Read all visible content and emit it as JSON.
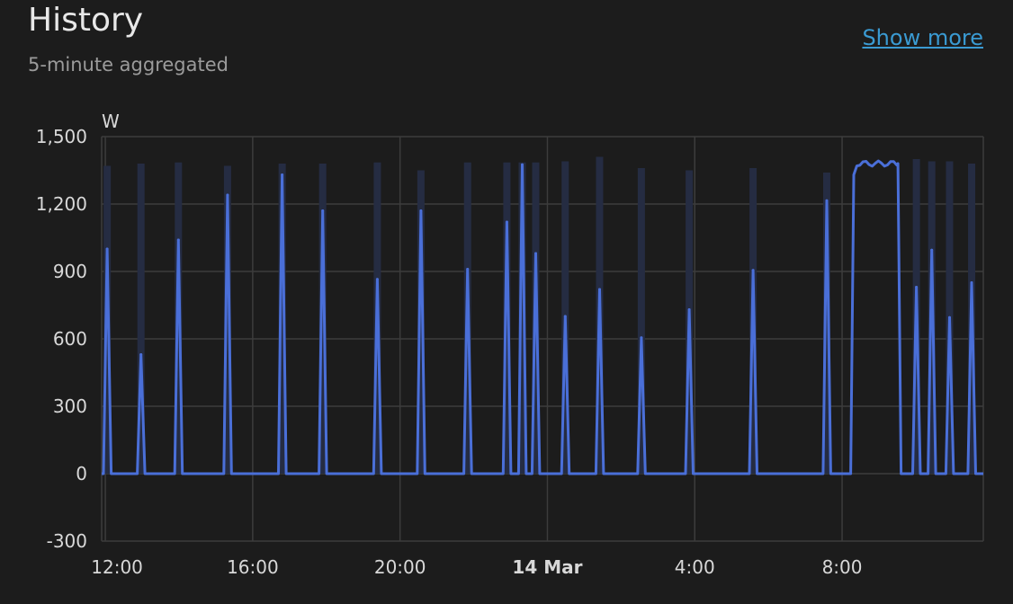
{
  "header": {
    "title": "History",
    "subtitle": "5-minute aggregated",
    "show_more": "Show more"
  },
  "colors": {
    "line": "#4a6fd8",
    "band": "#252c42",
    "grid": "#3c3c3c",
    "background": "#1c1c1c",
    "link": "#3a9ad2"
  },
  "chart_data": {
    "type": "line",
    "unit": "W",
    "ylim": [
      -300,
      1500
    ],
    "yticks": [
      "1,500",
      "1,200",
      "900",
      "600",
      "300",
      "0",
      "-300"
    ],
    "ytick_values": [
      1500,
      1200,
      900,
      600,
      300,
      0,
      -300
    ],
    "xlim": [
      "13 Mar 11:54",
      "14 Mar 11:50"
    ],
    "xticks": [
      {
        "label": "12:00",
        "time": "13 Mar 12:00",
        "bold": false
      },
      {
        "label": "16:00",
        "time": "13 Mar 16:00",
        "bold": false
      },
      {
        "label": "20:00",
        "time": "13 Mar 20:00",
        "bold": false
      },
      {
        "label": "14 Mar",
        "time": "14 Mar 00:00",
        "bold": true
      },
      {
        "label": "4:00",
        "time": "14 Mar 04:00",
        "bold": false
      },
      {
        "label": "8:00",
        "time": "14 Mar 08:00",
        "bold": false
      }
    ],
    "grid": true,
    "baseline": 0,
    "spikes": [
      {
        "time": "13 Mar 12:03",
        "mean": 1000,
        "max": 1370
      },
      {
        "time": "13 Mar 12:58",
        "mean": 530,
        "max": 1380
      },
      {
        "time": "13 Mar 13:59",
        "mean": 1040,
        "max": 1385
      },
      {
        "time": "13 Mar 15:19",
        "mean": 1240,
        "max": 1370
      },
      {
        "time": "13 Mar 16:48",
        "mean": 1330,
        "max": 1380
      },
      {
        "time": "13 Mar 17:54",
        "mean": 1170,
        "max": 1380
      },
      {
        "time": "13 Mar 19:23",
        "mean": 865,
        "max": 1385
      },
      {
        "time": "13 Mar 20:34",
        "mean": 1170,
        "max": 1350
      },
      {
        "time": "13 Mar 21:50",
        "mean": 910,
        "max": 1385
      },
      {
        "time": "13 Mar 22:54",
        "mean": 1120,
        "max": 1385
      },
      {
        "time": "13 Mar 23:19",
        "mean": 1375,
        "max": 1385
      },
      {
        "time": "13 Mar 23:41",
        "mean": 980,
        "max": 1385
      },
      {
        "time": "14 Mar 00:29",
        "mean": 700,
        "max": 1390
      },
      {
        "time": "14 Mar 01:25",
        "mean": 820,
        "max": 1410
      },
      {
        "time": "14 Mar 02:33",
        "mean": 605,
        "max": 1360
      },
      {
        "time": "14 Mar 03:51",
        "mean": 730,
        "max": 1350
      },
      {
        "time": "14 Mar 05:35",
        "mean": 905,
        "max": 1360
      },
      {
        "time": "14 Mar 07:35",
        "mean": 1215,
        "max": 1340
      },
      {
        "time": "14 Mar 10:01",
        "mean": 830,
        "max": 1400
      },
      {
        "time": "14 Mar 10:26",
        "mean": 995,
        "max": 1390
      },
      {
        "time": "14 Mar 10:55",
        "mean": 695,
        "max": 1390
      },
      {
        "time": "14 Mar 11:31",
        "mean": 850,
        "max": 1380
      }
    ],
    "plateau": {
      "start": "14 Mar 08:19",
      "end": "14 Mar 09:31",
      "mean": 1380
    }
  }
}
